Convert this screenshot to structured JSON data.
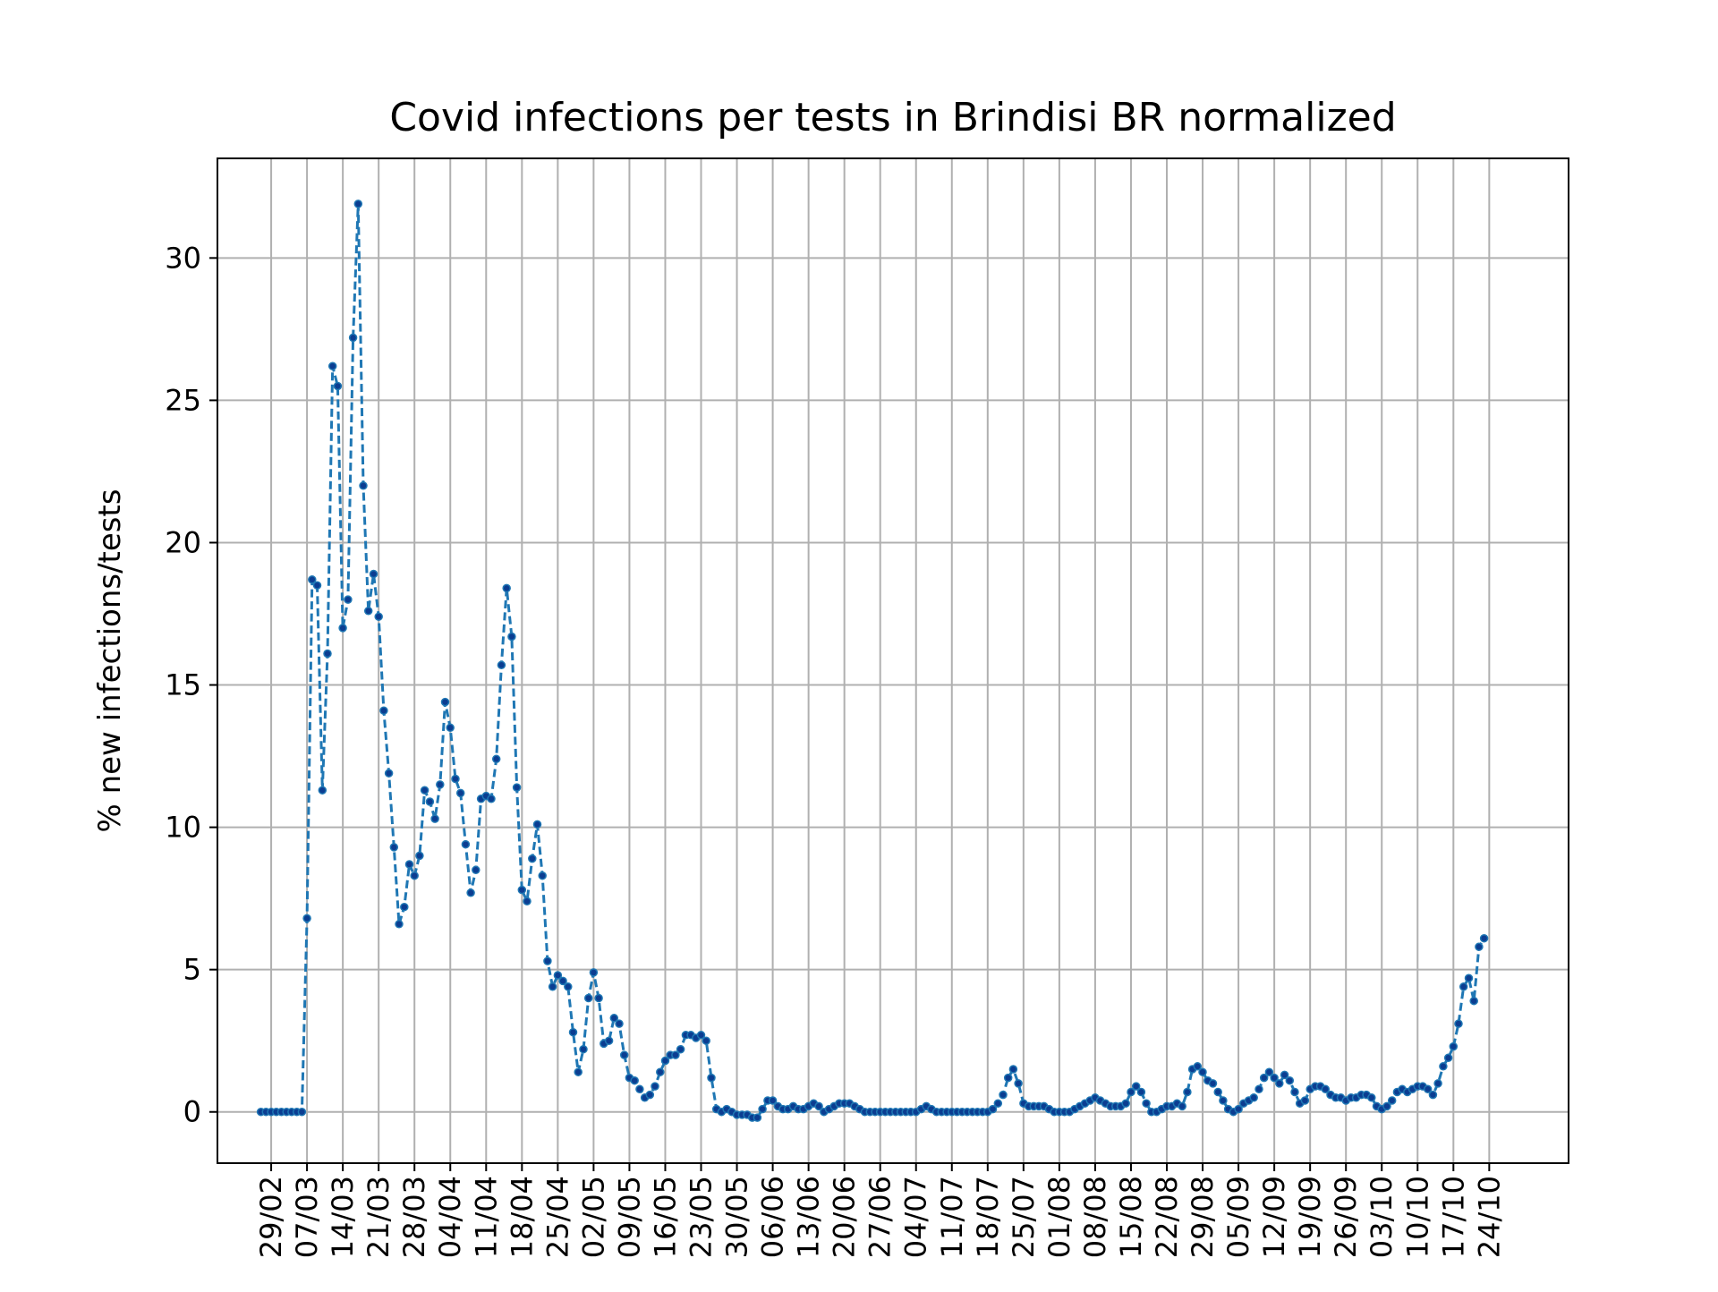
{
  "chart_data": {
    "type": "line",
    "title": "Covid infections per tests in Brindisi BR normalized",
    "xlabel": "",
    "ylabel": "% new infections/tests",
    "x_tick_labels": [
      "29/02",
      "07/03",
      "14/03",
      "21/03",
      "28/03",
      "04/04",
      "11/04",
      "18/04",
      "25/04",
      "02/05",
      "09/05",
      "16/05",
      "23/05",
      "30/05",
      "06/06",
      "13/06",
      "20/06",
      "27/06",
      "04/07",
      "11/07",
      "18/07",
      "25/07",
      "01/08",
      "08/08",
      "15/08",
      "22/08",
      "29/08",
      "05/09",
      "12/09",
      "19/09",
      "26/09",
      "03/10",
      "10/10",
      "17/10",
      "24/10"
    ],
    "y_ticks": [
      0,
      5,
      10,
      15,
      20,
      25,
      30
    ],
    "ylim": [
      -1.8,
      33.5
    ],
    "xlim_days_from_first_tick": [
      -10.5,
      253.5
    ],
    "x_start": "27/02",
    "grid": true,
    "line_style": "dashed with dot markers",
    "colors": {
      "line": "#1f77b4",
      "marker": "#0b3d91",
      "grid": "#b0b0b0"
    },
    "series": [
      {
        "name": "",
        "values": [
          0,
          0,
          0,
          0,
          0,
          0,
          0,
          0,
          0,
          6.8,
          18.7,
          18.5,
          11.3,
          16.1,
          26.2,
          25.5,
          17.0,
          18.0,
          27.2,
          31.9,
          22.0,
          17.6,
          18.9,
          17.4,
          14.1,
          11.9,
          9.3,
          6.6,
          7.2,
          8.7,
          8.3,
          9.0,
          11.3,
          10.9,
          10.3,
          11.5,
          14.4,
          13.5,
          11.7,
          11.2,
          9.4,
          7.7,
          8.5,
          11.0,
          11.1,
          11.0,
          12.4,
          15.7,
          18.4,
          16.7,
          11.4,
          7.8,
          7.4,
          8.9,
          10.1,
          8.3,
          5.3,
          4.4,
          4.8,
          4.6,
          4.4,
          2.8,
          1.4,
          2.2,
          4.0,
          4.9,
          4.0,
          2.4,
          2.5,
          3.3,
          3.1,
          2.0,
          1.2,
          1.1,
          0.8,
          0.5,
          0.6,
          0.9,
          1.4,
          1.8,
          2.0,
          2.0,
          2.2,
          2.7,
          2.7,
          2.6,
          2.7,
          2.5,
          1.2,
          0.1,
          0.0,
          0.1,
          0.0,
          -0.1,
          -0.1,
          -0.1,
          -0.2,
          -0.2,
          0.1,
          0.4,
          0.4,
          0.2,
          0.1,
          0.1,
          0.2,
          0.1,
          0.1,
          0.2,
          0.3,
          0.2,
          0.0,
          0.1,
          0.2,
          0.3,
          0.3,
          0.3,
          0.2,
          0.1,
          0.0,
          0.0,
          0.0,
          0.0,
          0.0,
          0.0,
          0.0,
          0.0,
          0.0,
          0.0,
          0.0,
          0.1,
          0.2,
          0.1,
          0.0,
          0.0,
          0.0,
          0.0,
          0.0,
          0.0,
          0.0,
          0.0,
          0.0,
          0.0,
          0.0,
          0.1,
          0.3,
          0.6,
          1.2,
          1.5,
          1.0,
          0.3,
          0.2,
          0.2,
          0.2,
          0.2,
          0.1,
          0.0,
          0.0,
          0.0,
          0.0,
          0.1,
          0.2,
          0.3,
          0.4,
          0.5,
          0.4,
          0.3,
          0.2,
          0.2,
          0.2,
          0.3,
          0.7,
          0.9,
          0.7,
          0.3,
          0.0,
          0.0,
          0.1,
          0.2,
          0.2,
          0.3,
          0.2,
          0.7,
          1.5,
          1.6,
          1.4,
          1.1,
          1.0,
          0.7,
          0.4,
          0.1,
          0.0,
          0.1,
          0.3,
          0.4,
          0.5,
          0.8,
          1.2,
          1.4,
          1.2,
          1.0,
          1.3,
          1.1,
          0.7,
          0.3,
          0.4,
          0.8,
          0.9,
          0.9,
          0.8,
          0.6,
          0.5,
          0.5,
          0.4,
          0.5,
          0.5,
          0.6,
          0.6,
          0.5,
          0.2,
          0.1,
          0.2,
          0.4,
          0.7,
          0.8,
          0.7,
          0.8,
          0.9,
          0.9,
          0.8,
          0.6,
          1.0,
          1.6,
          1.9,
          2.3,
          3.1,
          4.4,
          4.7,
          3.9,
          5.8,
          6.1
        ]
      }
    ]
  }
}
